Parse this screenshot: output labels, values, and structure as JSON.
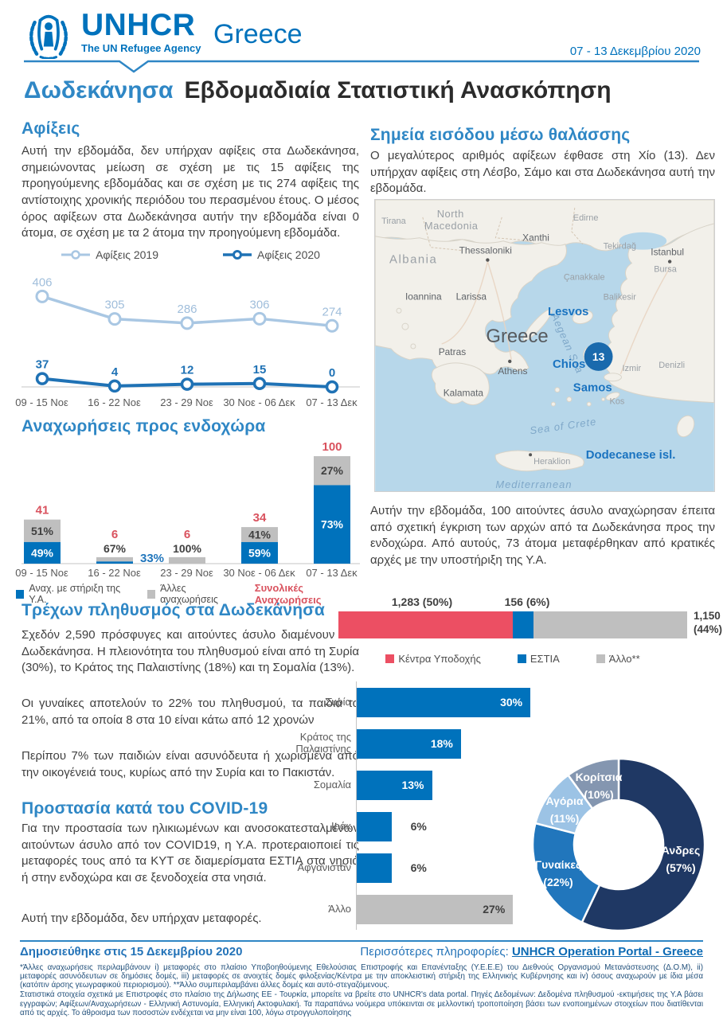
{
  "header": {
    "org": "UNHCR",
    "tagline": "The UN Refugee Agency",
    "country": "Greece",
    "date_range": "07 - 13 Δεκεμβρίου 2020"
  },
  "title": {
    "region": "Δωδεκάνησα",
    "text": "Εβδομαδιαία Στατιστική Ανασκόπηση"
  },
  "arrivals": {
    "heading": "Αφίξεις",
    "body": "Αυτή την εβδομάδα, δεν υπήρχαν αφίξεις στα Δωδεκάνησα, σημειώνοντας μείωση σε σχέση με τις 15 αφίξεις της προηγούμενης εβδομάδας και σε σχέση με τις 274 αφίξεις της αντίστοιχης χρονικής περιόδου του περασμένου έτους. Ο μέσος όρος αφίξεων στα Δωδεκάνησα αυτήν την εβδομάδα είναι 0 άτομα, σε σχέση με τα 2 άτομα την προηγούμενη εβδομάδα."
  },
  "sea_entry": {
    "heading": "Σημεία εισόδου μέσω θαλάσσης",
    "body": "Ο μεγαλύτερος αριθμός αφίξεων έφθασε στη Χίο (13). Δεν υπήρχαν αφίξεις στη Λέσβο, Σάμο και στα Δωδεκάνησα αυτή την εβδομάδα."
  },
  "map": {
    "marker_value": "13",
    "labels": {
      "tirana": "Tirana",
      "north1": "North",
      "north2": "Macedonia",
      "albania": "Albania",
      "thessaloniki": "Thessaloniki",
      "xanthi": "Xanthi",
      "edirne": "Edirne",
      "tekirdag": "Tekirdağ",
      "istanbul": "Istanbul",
      "bursa": "Bursa",
      "canakkale": "Çanakkale",
      "balikesir": "Balikesir",
      "ioannina": "Ioannina",
      "larissa": "Larissa",
      "greece": "Greece",
      "athens": "Athens",
      "patras": "Patras",
      "kalamata": "Kalamata",
      "izmir": "Izmir",
      "kos": "Kos",
      "denizli": "Denizli",
      "heraklion": "Heraklion",
      "aegean": "Aegean Sea",
      "sea_of_crete": "Sea of Crete",
      "mediterranean": "Mediterranean",
      "lesvos": "Lesvos",
      "chios": "Chios",
      "samos": "Samos",
      "dodecanese": "Dodecanese isl."
    }
  },
  "departures": {
    "heading": "Αναχωρήσεις προς ενδοχώρα",
    "body": "Αυτήν την εβδομάδα, 100 αιτούντες άσυλο αναχώρησαν έπειτα από σχετική έγκριση των αρχών από τα Δωδεκάνησα προς την ενδοχώρα. Από αυτούς, 73 άτομα μεταφέρθηκαν από κρατικές αρχές με την υποστήριξη της Υ.Α."
  },
  "population": {
    "heading": "Τρέχων πληθυσμός στα Δωδεκάνησα",
    "paragraphs": [
      "Σχεδόν 2,590 πρόσφυγες και αιτούντες άσυλο διαμένουν στα Δωδεκάνησα. Η πλειονότητα του πληθυσμού είναι από τη Συρία (30%), το Κράτος της Παλαιστίνης (18%) και τη Σομαλία (13%).",
      "Οι γυναίκες αποτελούν το 22% του πληθυσμού, τα παιδιά το 21%, από τα οποία 8 στα 10 είναι κάτω από 12  χρονών",
      "Περίπου 7% των παιδιών είναι ασυνόδευτα ή χωρισμένα από την οικογένειά τους, κυρίως από την Συρία και το Πακιστάν."
    ]
  },
  "covid": {
    "heading": "Προστασία κατά του COVID-19",
    "paragraphs": [
      "Για την προστασία των ηλικιωμένων και ανοσοκατεσταλμένων αιτούντων άσυλο από τον COVID19, η Υ.Α. προτεραιοποιεί τις μεταφορές τους από τα ΚΥΤ σε διαμερίσματα ΕΣΤΙΑ στα νησιά ή στην ενδοχώρα και σε ξενοδοχεία στα νησιά.",
      "Αυτή την εβδομάδα, δεν υπήρχαν μεταφορές."
    ]
  },
  "footer": {
    "published": "Δημοσιεύθηκε στις 15 Δεκεμβρίου  2020",
    "more_info": "Περισσότερες πληροφορίες:",
    "link": "UNHCR Operation Portal - Greece",
    "footnotes": [
      "*Άλλες αναχωρήσεις περιλαμβάνουν i) μεταφορές στο πλαίσιο Υποβοηθούμενης Εθελούσιας Επιστροφής και Επανένταξης (Υ.Ε.Ε.Ε) του Διεθνούς Οργανισμού Μετανάστευσης (Δ.Ο.Μ), ii) μεταφορές ασυνόδευτων σε δημόσιες δομές, iii) μεταφορές σε ανοιχτές δομές φιλοξενίας/Κέντρα με την αποκλειστική στήριξη της Ελληνικής Κυβέρνησης και iv) όσους αναχωρούν με ίδια μέσα (κατόπιν άρσης γεωγραφικού περιορισμού). **Άλλο συμπεριλαμβάνει άλλες δομές και αυτό-στεγαζόμενους.",
      "Στατιστικά στοιχεία σχετικά με Επιστροφές στο πλαίσιο της Δήλωσης ΕΕ - Τουρκία, μπορείτε να βρείτε στο  UNHCR's data portal. Πηγές Δεδομένων: Δεδομένα πληθυσμού -εκτιμήσεις της Υ.Α βάσει εγγραφών; Αφίξεων/Αναχωρήσεων - Ελληνική Αστυνομία, Ελληνική Ακτοφυλακή. Τα παραπάνω νούμερα υπόκεινται σε μελλοντική τροποποίηση βάσει των ενοποιημένων στοιχείων που διατίθενται από τις αρχές. Το άθροισμα των ποσοστών ενδέχεται να μην είναι 100, λόγω στρογγυλοποίησης"
    ]
  },
  "colors": {
    "unhcr_blue": "#0072bc",
    "section_blue": "#2f87c5",
    "light_blue_2019": "#a9c7e3",
    "dark_blue_2020": "#1f72b5",
    "bar_gray": "#bfbfbf",
    "total_red": "#d9525e",
    "accommodation_red": "#ec4f63",
    "map_sea": "#b7d7ea",
    "map_land": "#f2f0ea"
  },
  "chart_data": [
    {
      "id": "arrivals",
      "type": "line",
      "categories": [
        "09 - 15 Νοε",
        "16 - 22 Νοε",
        "23 - 29 Νοε",
        "30 Νοε - 06 Δεκ",
        "07 - 13 Δεκ"
      ],
      "series": [
        {
          "name": "Αφίξεις 2019",
          "color": "#a9c7e3",
          "values": [
            406,
            305,
            286,
            306,
            274
          ]
        },
        {
          "name": "Αφίξεις 2020",
          "color": "#1f72b5",
          "values": [
            37,
            4,
            12,
            15,
            0
          ]
        }
      ],
      "legend_position": "top",
      "grid": false,
      "ylim": [
        0,
        450
      ]
    },
    {
      "id": "departures",
      "type": "bar",
      "subtype": "stacked",
      "categories": [
        "09 - 15 Νοε",
        "16 - 22 Νοε",
        "23 - 29 Νοε",
        "30 Νοε - 06 Δεκ",
        "07 - 13 Δεκ"
      ],
      "totals": [
        41,
        6,
        6,
        34,
        100
      ],
      "series": [
        {
          "name": "Αναχ. με στήριξη της Υ.Α.",
          "color": "#0072bc",
          "pct": [
            49,
            33,
            0,
            59,
            73
          ]
        },
        {
          "name": "Άλλες αναχωρήσεις",
          "color": "#bfbfbf",
          "pct": [
            51,
            67,
            100,
            41,
            27
          ]
        }
      ],
      "totals_legend": "Συνολικές Αναχωρήσεις",
      "totals_color": "#d9525e"
    },
    {
      "id": "accommodation",
      "type": "bar",
      "subtype": "horizontal-stacked",
      "segments": [
        {
          "name": "Κέντρα Υποδοχής",
          "value": 1283,
          "pct": 50,
          "label": "1,283  (50%)",
          "color": "#ec4f63"
        },
        {
          "name": "ΕΣΤΙΑ",
          "value": 156,
          "pct": 6,
          "label": "156  (6%)",
          "color": "#0072bc"
        },
        {
          "name": "Άλλο**",
          "value": 1150,
          "pct": 44,
          "label_value": "1,150",
          "label_pct": "(44%)",
          "color": "#bfbfbf"
        }
      ]
    },
    {
      "id": "nationalities",
      "type": "bar",
      "subtype": "horizontal",
      "categories": [
        "Συρία",
        "Κράτος της Παλαιστίνης",
        "Σομαλία",
        "Ιράκ",
        "Αφγανιστάν",
        "Άλλο"
      ],
      "values": [
        30,
        18,
        13,
        6,
        6,
        27
      ],
      "labels": [
        "30%",
        "18%",
        "13%",
        "6%",
        "6%",
        "27%"
      ],
      "colors": [
        "#0072bc",
        "#0072bc",
        "#0072bc",
        "#0072bc",
        "#0072bc",
        "#bfbfbf"
      ]
    },
    {
      "id": "demographics",
      "type": "pie",
      "subtype": "donut",
      "slices": [
        {
          "name": "Άνδρες",
          "pct": 57,
          "label": "Άνδρες",
          "pct_label": "(57%)",
          "color": "#1f3864"
        },
        {
          "name": "Γυναίκες",
          "pct": 22,
          "label": "Γυναίκες",
          "pct_label": "(22%)",
          "color": "#2176bc"
        },
        {
          "name": "Αγόρια",
          "pct": 11,
          "label": "Αγόρια",
          "pct_label": "(11%)",
          "color": "#9cc3e5"
        },
        {
          "name": "Κορίτσια",
          "pct": 10,
          "label": "Κορίτσια",
          "pct_label": "(10%)",
          "color": "#8496b0"
        }
      ]
    }
  ]
}
